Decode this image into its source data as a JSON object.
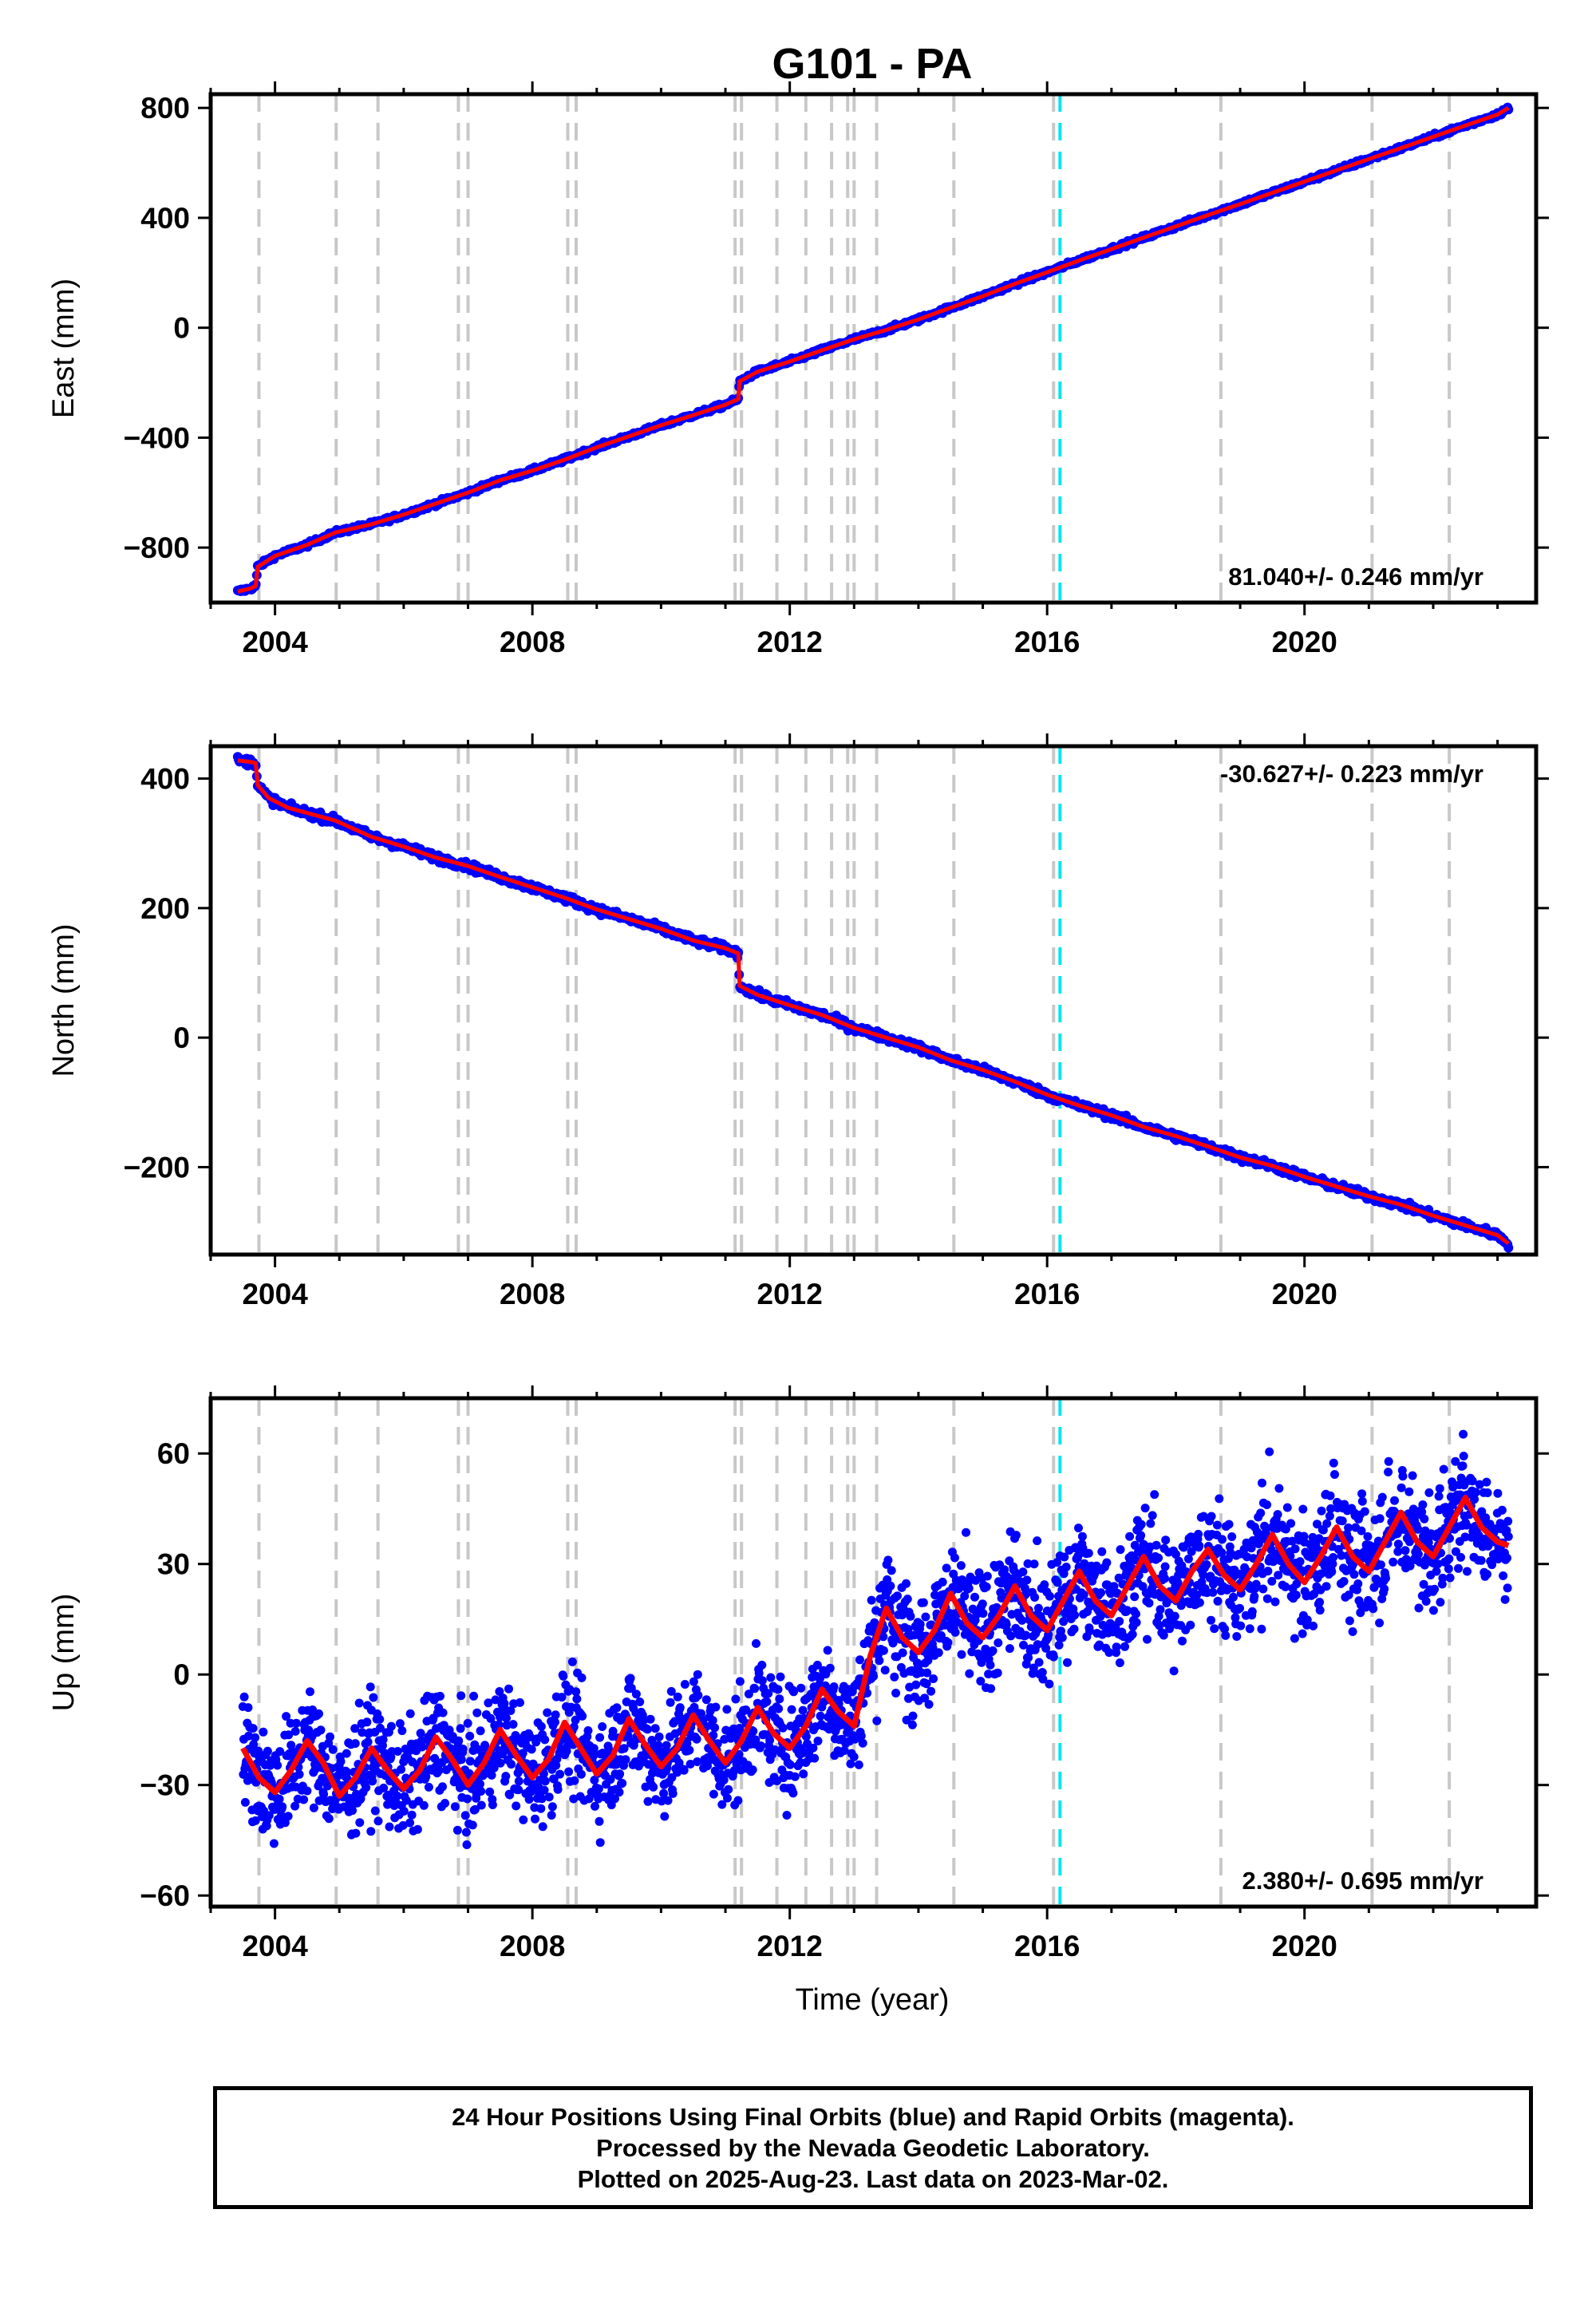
{
  "title": "G101 - PA",
  "xlabel": "Time (year)",
  "caption": [
    "24 Hour Positions Using Final Orbits (blue) and Rapid Orbits (magenta).",
    "Processed by the Nevada Geodetic Laboratory.",
    "Plotted on 2025-Aug-23. Last data on 2023-Mar-02."
  ],
  "colors": {
    "observations": "#0000ff",
    "model": "#ff0000",
    "steps": "#c8c8c8",
    "antenna_change": "#00e5ee",
    "frame": "#000000"
  },
  "chart_data": [
    {
      "type": "scatter",
      "component": "East",
      "ylabel": "East (mm)",
      "xlim": [
        2003.0,
        2023.6
      ],
      "ylim": [
        -1000,
        850
      ],
      "xticks": [
        2004,
        2008,
        2012,
        2016,
        2020
      ],
      "yticks": [
        -800,
        -400,
        0,
        400,
        800
      ],
      "rate_text": "81.040+/- 0.246 mm/yr",
      "rate_position": "bottom-right",
      "trend": {
        "start": [
          2003.42,
          -960
        ],
        "end": [
          2023.17,
          800
        ]
      },
      "series": [
        {
          "values_label": "daily position",
          "x": [
            2003.42,
            2003.6,
            2003.7,
            2003.73,
            2004.0,
            2004.5,
            2004.94,
            2005.5,
            2006.0,
            2006.5,
            2007.0,
            2007.5,
            2008.0,
            2008.5,
            2009.0,
            2009.5,
            2010.0,
            2010.5,
            2011.0,
            2011.2,
            2011.22,
            2011.5,
            2012.0,
            2012.5,
            2013.0,
            2013.5,
            2014.0,
            2014.5,
            2015.0,
            2015.5,
            2016.0,
            2016.5,
            2017.0,
            2017.5,
            2018.0,
            2018.5,
            2019.0,
            2019.5,
            2020.0,
            2020.5,
            2021.0,
            2021.5,
            2022.0,
            2022.5,
            2023.0,
            2023.17
          ],
          "y": [
            -960,
            -950,
            -940,
            -870,
            -830,
            -790,
            -745,
            -715,
            -680,
            -640,
            -600,
            -555,
            -520,
            -480,
            -435,
            -395,
            -355,
            -318,
            -280,
            -260,
            -195,
            -160,
            -123,
            -82,
            -42,
            -8,
            30,
            73,
            115,
            160,
            202,
            245,
            286,
            328,
            369,
            410,
            450,
            491,
            532,
            573,
            614,
            654,
            695,
            736,
            776,
            800
          ]
        }
      ]
    },
    {
      "type": "scatter",
      "component": "North",
      "ylabel": "North (mm)",
      "xlim": [
        2003.0,
        2023.6
      ],
      "ylim": [
        -335,
        450
      ],
      "xticks": [
        2004,
        2008,
        2012,
        2016,
        2020
      ],
      "yticks": [
        -200,
        0,
        200,
        400
      ],
      "rate_text": "-30.627+/- 0.223 mm/yr",
      "rate_position": "top-right",
      "series": [
        {
          "values_label": "daily position",
          "x": [
            2003.42,
            2003.6,
            2003.7,
            2003.73,
            2003.9,
            2004.2,
            2004.94,
            2005.5,
            2006.0,
            2006.5,
            2007.0,
            2007.5,
            2008.0,
            2008.5,
            2009.0,
            2009.5,
            2010.0,
            2010.5,
            2011.0,
            2011.2,
            2011.22,
            2011.5,
            2012.0,
            2012.5,
            2013.0,
            2013.5,
            2014.0,
            2014.5,
            2015.0,
            2015.5,
            2016.0,
            2016.5,
            2017.0,
            2017.5,
            2018.0,
            2018.5,
            2019.0,
            2019.5,
            2020.0,
            2020.5,
            2021.0,
            2021.5,
            2022.0,
            2022.5,
            2023.0,
            2023.17
          ],
          "y": [
            428,
            426,
            424,
            390,
            370,
            355,
            335,
            310,
            295,
            278,
            265,
            248,
            232,
            216,
            198,
            183,
            168,
            150,
            138,
            130,
            80,
            66,
            50,
            35,
            15,
            0,
            -15,
            -35,
            -50,
            -68,
            -88,
            -105,
            -120,
            -138,
            -152,
            -168,
            -185,
            -198,
            -215,
            -230,
            -245,
            -258,
            -275,
            -290,
            -305,
            -318
          ]
        }
      ]
    },
    {
      "type": "scatter",
      "component": "Up",
      "ylabel": "Up (mm)",
      "xlim": [
        2003.0,
        2023.6
      ],
      "ylim": [
        -63,
        75
      ],
      "xticks": [
        2004,
        2008,
        2012,
        2016,
        2020
      ],
      "yticks": [
        -60,
        -30,
        0,
        30,
        60
      ],
      "rate_text": "2.380+/- 0.695 mm/yr",
      "rate_position": "bottom-right",
      "series": [
        {
          "values_label": "daily position",
          "x": [
            2003.5,
            2003.75,
            2004.0,
            2004.25,
            2004.5,
            2004.75,
            2005.0,
            2005.25,
            2005.5,
            2005.75,
            2006.0,
            2006.25,
            2006.5,
            2006.75,
            2007.0,
            2007.25,
            2007.5,
            2007.75,
            2008.0,
            2008.25,
            2008.5,
            2008.75,
            2009.0,
            2009.25,
            2009.5,
            2009.75,
            2010.0,
            2010.25,
            2010.5,
            2010.75,
            2011.0,
            2011.25,
            2011.5,
            2011.75,
            2012.0,
            2012.25,
            2012.5,
            2012.75,
            2013.0,
            2013.25,
            2013.5,
            2013.75,
            2014.0,
            2014.25,
            2014.5,
            2014.75,
            2015.0,
            2015.25,
            2015.5,
            2015.75,
            2016.0,
            2016.25,
            2016.5,
            2016.75,
            2017.0,
            2017.25,
            2017.5,
            2017.75,
            2018.0,
            2018.25,
            2018.5,
            2018.75,
            2019.0,
            2019.25,
            2019.5,
            2019.75,
            2020.0,
            2020.25,
            2020.5,
            2020.75,
            2021.0,
            2021.25,
            2021.5,
            2021.75,
            2022.0,
            2022.25,
            2022.5,
            2022.75,
            2023.0,
            2023.17
          ],
          "y": [
            -20,
            -28,
            -32,
            -26,
            -18,
            -24,
            -33,
            -28,
            -20,
            -26,
            -31,
            -26,
            -17,
            -23,
            -30,
            -24,
            -15,
            -22,
            -28,
            -23,
            -13,
            -20,
            -27,
            -22,
            -12,
            -19,
            -25,
            -20,
            -11,
            -18,
            -24,
            -18,
            -9,
            -16,
            -20,
            -14,
            -4,
            -10,
            -14,
            5,
            18,
            10,
            6,
            12,
            22,
            14,
            10,
            16,
            24,
            16,
            12,
            20,
            28,
            20,
            16,
            24,
            32,
            24,
            20,
            28,
            34,
            27,
            23,
            30,
            38,
            30,
            25,
            32,
            40,
            32,
            28,
            36,
            44,
            36,
            32,
            40,
            48,
            40,
            36,
            35
          ]
        }
      ]
    }
  ],
  "step_epochs": [
    2003.75,
    2004.95,
    2005.6,
    2006.85,
    2007.0,
    2008.55,
    2008.68,
    2011.15,
    2011.25,
    2011.8,
    2012.25,
    2012.65,
    2012.9,
    2013.0,
    2013.35,
    2014.55,
    2016.1,
    2018.7,
    2021.05,
    2022.25
  ],
  "antenna_change_epochs": [
    2016.2
  ]
}
